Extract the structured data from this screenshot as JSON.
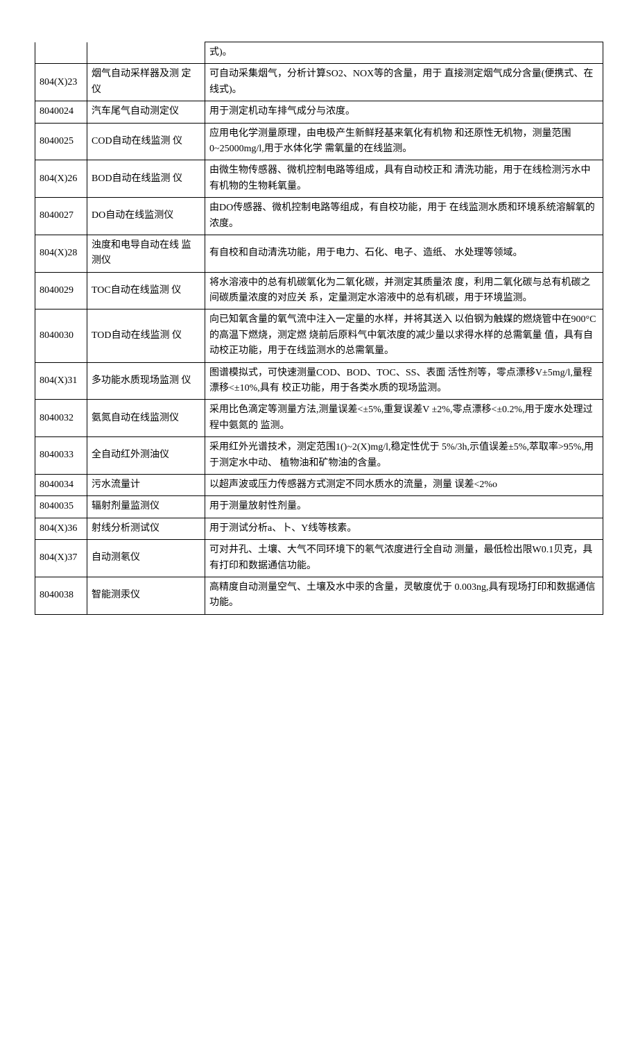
{
  "table": {
    "rows": [
      {
        "code": "",
        "name": "",
        "desc": "式)。",
        "firstRow": true,
        "emptyLeadCells": true
      },
      {
        "code": "804(X)23",
        "name": "烟气自动采样器及测 定 仪",
        "desc": "可自动采集烟气，分析计算SO2、NOX等的含量，用于 直接测定烟气成分含量(便携式、在线式)。"
      },
      {
        "code": "8040024",
        "name": "汽车尾气自动测定仪",
        "desc": "用于测定机动车排气成分与浓度。"
      },
      {
        "code": "8040025",
        "name": "COD自动在线监测 仪",
        "desc": "应用电化学测量原理，由电极产生新鲜羟基来氧化有机物 和还原性无机物，测量范围0~25000mg/l,用于水体化学 需氧量的在线监测。"
      },
      {
        "code": "804(X)26",
        "name": "BOD自动在线监测 仪",
        "desc": "由微生物传感器、微机控制电路等组成，具有自动校正和 清洗功能，用于在线检测污水中有机物的生物耗氧量。"
      },
      {
        "code": "8040027",
        "name": "DO自动在线监测仪",
        "desc": "由DO传感器、微机控制电路等组成，有自校功能，用于 在线监测水质和环境系统溶解氧的浓度。"
      },
      {
        "code": "804(X)28",
        "name": "浊度和电导自动在线 监 测仪",
        "desc": "有自校和自动清洗功能，用于电力、石化、电子、造纸、 水处理等领域。"
      },
      {
        "code": "8040029",
        "name": "TOC自动在线监测 仪",
        "desc": "将水溶液中的总有机碳氧化为二氧化碳，并测定其质量浓 度，利用二氧化碳与总有机碳之间碳质量浓度的对应关 系，定量测定水溶液中的总有机碳，用于环境监测。"
      },
      {
        "code": "8040030",
        "name": "TOD自动在线监测 仪",
        "desc": "向已知氧含量的氧气流中注入一定量的水样，并将其送入 以伯钢为触媒的燃烧管中在900°C的高温下燃烧，测定燃 烧前后原料气中氧浓度的减少量以求得水样的总需氧量 值，具有自动校正功能，用于在线监测水的总需氧量。"
      },
      {
        "code": "804(X)31",
        "name": "多功能水质现场监测 仪",
        "desc": "图谱模拟式，可快速测量COD、BOD、TOC、SS、表面 活性剂等，零点漂移V±5mg/l,量程漂移<±10%,具有 校正功能，用于各类水质的现场监测。"
      },
      {
        "code": "8040032",
        "name": "氨氮自动在线监测仪",
        "desc": "采用比色滴定等测量方法,测量误差<±5%,重复误差V ±2%,零点漂移<±0.2%,用于废水处理过程中氨氮的 监测。"
      },
      {
        "code": "8040033",
        "name": "全自动红外测油仪",
        "desc": "采用红外光谱技术，测定范围1()~2(X)mg/l,稳定性优于 5%/3h,示值误差±5%,萃取率>95%,用于测定水中动、 植物油和矿物油的含量。"
      },
      {
        "code": "8040034",
        "name": "污水流量计",
        "desc": "以超声波或压力传感器方式测定不同水质水的流量，测量 误差<2%o"
      },
      {
        "code": "8040035",
        "name": "辐射剂量监测仪",
        "desc": "用于测量放射性剂量。"
      },
      {
        "code": "804(X)36",
        "name": "射线分析测试仪",
        "desc": "用于测试分析a、卜、Y线等核素。"
      },
      {
        "code": "804(X)37",
        "name": "自动测氡仪",
        "desc": "可对井孔、土壤、大气不同环境下的氡气浓度进行全自动 测量，最低检出限W0.1贝克，具有打印和数据通信功能。"
      },
      {
        "code": "8040038",
        "name": "智能测汞仪",
        "desc": "高精度自动测量空气、土壤及水中汞的含量，灵敏度优于 0.003ng,具有现场打印和数据通信功能。"
      }
    ]
  }
}
